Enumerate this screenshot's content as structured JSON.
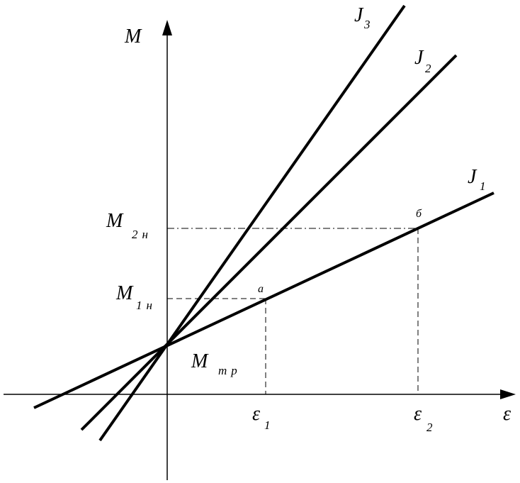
{
  "axes": {
    "y_label": "M",
    "x_label": "ε"
  },
  "lines": [
    {
      "label": "J",
      "sub": "1"
    },
    {
      "label": "J",
      "sub": "2"
    },
    {
      "label": "J",
      "sub": "3"
    }
  ],
  "levels": [
    {
      "label": "M",
      "sub": "2н"
    },
    {
      "label": "M",
      "sub": "1н"
    }
  ],
  "origin_label": {
    "label": "M",
    "sub": "тр"
  },
  "points": [
    "а",
    "б"
  ],
  "x_marks": [
    {
      "label": "ε",
      "sub": "1"
    },
    {
      "label": "ε",
      "sub": "2"
    }
  ]
}
